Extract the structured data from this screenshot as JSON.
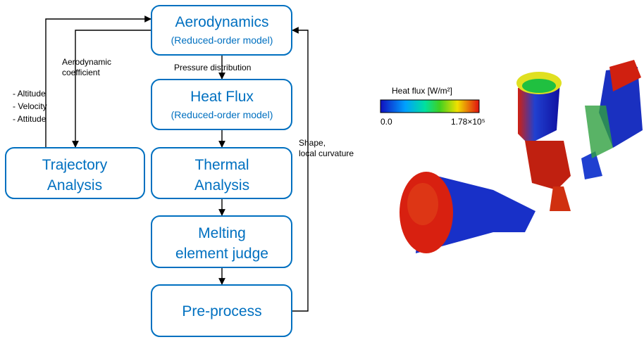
{
  "nodes": [
    {
      "label": "Aerodynamics",
      "sublabel": "(Reduced-order model)"
    },
    {
      "label": "Heat Flux",
      "sublabel": "(Reduced-order model)"
    },
    {
      "label": "Thermal",
      "label2": "Analysis"
    },
    {
      "label": "Melting",
      "label2": "element judge"
    },
    {
      "label": "Pre-process"
    },
    {
      "label": "Trajectory",
      "label2": "Analysis"
    }
  ],
  "edges": {
    "pressure": "Pressure distribution",
    "coefficient": [
      "Aerodynamic",
      "coefficient"
    ],
    "state": [
      "- Altitude",
      "- Velocity",
      "- Attitude"
    ],
    "shape": [
      "Shape,",
      "local curvature"
    ]
  },
  "colorbar": {
    "title": "Heat flux [W/m²]",
    "min_label": "0.0",
    "max_label": "1.78×10⁵"
  }
}
